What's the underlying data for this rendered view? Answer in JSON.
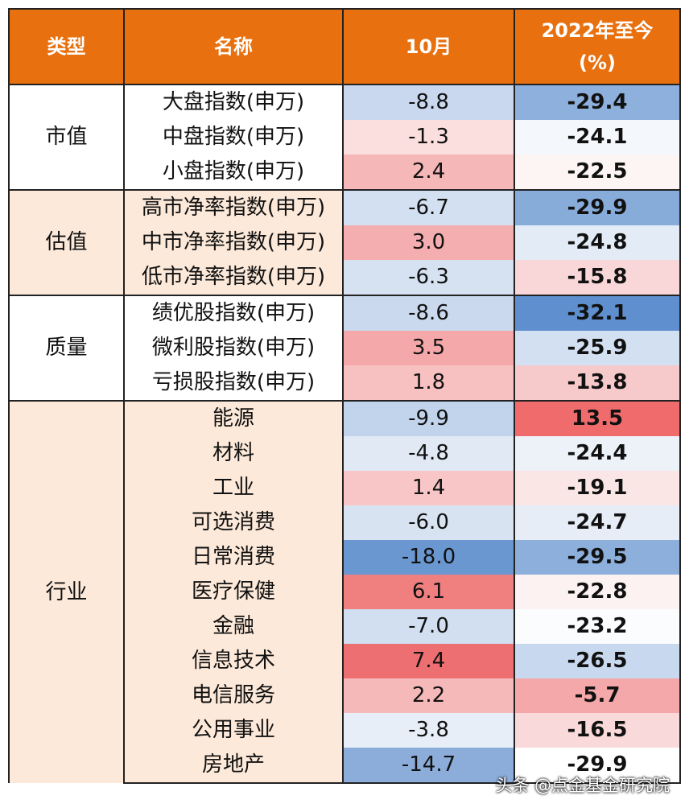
{
  "header": {
    "col_type": "类型",
    "col_name": "名称",
    "col_oct": "10月",
    "col_ytd_line1": "2022年至今",
    "col_ytd_line2": "(%)"
  },
  "groups": [
    {
      "type": "市值",
      "type_bg": "#ffffff",
      "rows": [
        {
          "name": "大盘指数(申万)",
          "oct": "-8.8",
          "ytd": "-29.4",
          "oct_bg": "#c9d8ee",
          "ytd_bg": "#8eb0dc"
        },
        {
          "name": "中盘指数(申万)",
          "oct": "-1.3",
          "ytd": "-24.1",
          "oct_bg": "#fbdede",
          "ytd_bg": "#f4f7fc"
        },
        {
          "name": "小盘指数(申万)",
          "oct": "2.4",
          "ytd": "-22.5",
          "oct_bg": "#f6b7b8",
          "ytd_bg": "#fdf4f4"
        }
      ]
    },
    {
      "type": "估值",
      "type_bg": "#fce9d9",
      "rows": [
        {
          "name": "高市净率指数(申万)",
          "oct": "-6.7",
          "ytd": "-29.9",
          "oct_bg": "#d3e0f1",
          "ytd_bg": "#88acda"
        },
        {
          "name": "中市净率指数(申万)",
          "oct": "3.0",
          "ytd": "-24.8",
          "oct_bg": "#f5aeb0",
          "ytd_bg": "#e3ebf6"
        },
        {
          "name": "低市净率指数(申万)",
          "oct": "-6.3",
          "ytd": "-15.8",
          "oct_bg": "#d6e2f2",
          "ytd_bg": "#f9d7d8"
        }
      ]
    },
    {
      "type": "质量",
      "type_bg": "#ffffff",
      "rows": [
        {
          "name": "绩优股指数(申万)",
          "oct": "-8.6",
          "ytd": "-32.1",
          "oct_bg": "#cad9ee",
          "ytd_bg": "#5f8fce"
        },
        {
          "name": "微利股指数(申万)",
          "oct": "3.5",
          "ytd": "-25.9",
          "oct_bg": "#f4a8aa",
          "ytd_bg": "#d3e0f1"
        },
        {
          "name": "亏损股指数(申万)",
          "oct": "1.8",
          "ytd": "-13.8",
          "oct_bg": "#f7c0c1",
          "ytd_bg": "#f6c9ca"
        }
      ]
    },
    {
      "type": "行业",
      "type_bg": "#fce9d9",
      "rows": [
        {
          "name": "能源",
          "oct": "-9.9",
          "ytd": "13.5",
          "oct_bg": "#c2d4ec",
          "ytd_bg": "#f06b6c"
        },
        {
          "name": "材料",
          "oct": "-4.8",
          "ytd": "-24.4",
          "oct_bg": "#e1e9f5",
          "ytd_bg": "#edf2f9"
        },
        {
          "name": "工业",
          "oct": "1.4",
          "ytd": "-19.1",
          "oct_bg": "#f8c6c7",
          "ytd_bg": "#fbe6e6"
        },
        {
          "name": "可选消费",
          "oct": "-6.0",
          "ytd": "-24.7",
          "oct_bg": "#d8e3f2",
          "ytd_bg": "#e6edf7"
        },
        {
          "name": "日常消费",
          "oct": "-18.0",
          "ytd": "-29.5",
          "oct_bg": "#6b97d1",
          "ytd_bg": "#8dafdb"
        },
        {
          "name": "医疗保健",
          "oct": "6.1",
          "ytd": "-22.8",
          "oct_bg": "#f07f80",
          "ytd_bg": "#fcf2f2"
        },
        {
          "name": "金融",
          "oct": "-7.0",
          "ytd": "-23.2",
          "oct_bg": "#d2dff0",
          "ytd_bg": "#fbfcfe"
        },
        {
          "name": "信息技术",
          "oct": "7.4",
          "ytd": "-26.5",
          "oct_bg": "#ee6f71",
          "ytd_bg": "#c8d8ee"
        },
        {
          "name": "电信服务",
          "oct": "2.2",
          "ytd": "-5.7",
          "oct_bg": "#f6b9ba",
          "ytd_bg": "#f4a8a9"
        },
        {
          "name": "公用事业",
          "oct": "-3.8",
          "ytd": "-16.5",
          "oct_bg": "#e7eef8",
          "ytd_bg": "#f9d9da"
        },
        {
          "name": "房地产",
          "oct": "-14.7",
          "ytd": "-29.9",
          "oct_bg": "#8cadda",
          "ytd_bg": "#ffffff"
        }
      ]
    }
  ],
  "watermark": "头条 @点金基金研究院",
  "colors": {
    "header_bg": "#e8700f",
    "header_text": "#ffffff",
    "border": "#222222"
  }
}
